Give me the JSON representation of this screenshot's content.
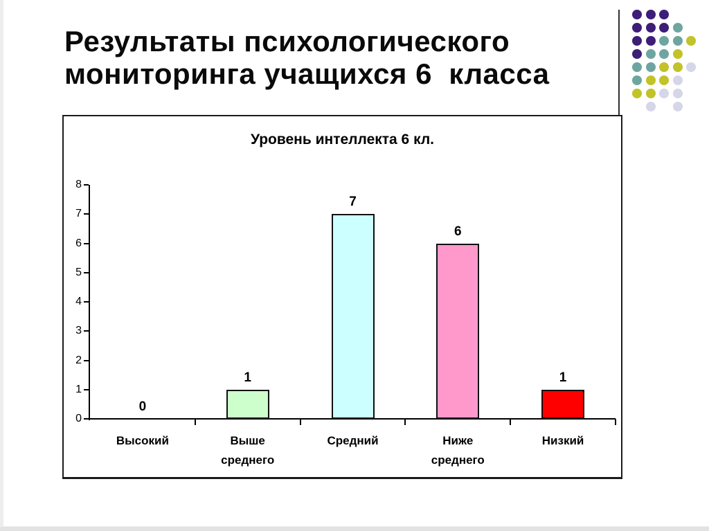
{
  "slide": {
    "title_lines": [
      "Результаты психологического",
      "мониторинга учащихся 6  класса"
    ]
  },
  "decoration": {
    "palette": {
      "p": "#3d1e78",
      "t": "#6fa5a0",
      "y": "#c2c229",
      "l": "#d6d6e9"
    },
    "rows": [
      [
        "p",
        "p",
        "p",
        "",
        ""
      ],
      [
        "p",
        "p",
        "p",
        "t",
        ""
      ],
      [
        "p",
        "p",
        "t",
        "t",
        "y"
      ],
      [
        "p",
        "t",
        "t",
        "y",
        ""
      ],
      [
        "t",
        "t",
        "y",
        "y",
        "l"
      ],
      [
        "t",
        "y",
        "y",
        "l",
        ""
      ],
      [
        "y",
        "y",
        "l",
        "l",
        ""
      ],
      [
        "",
        "l",
        "",
        "l",
        ""
      ]
    ]
  },
  "chart_data": {
    "type": "bar",
    "title": "Уровень интеллекта 6 кл.",
    "categories": [
      "Высокий",
      "Выше среднего",
      "Средний",
      "Ниже среднего",
      "Низкий"
    ],
    "values": [
      0,
      1,
      7,
      6,
      1
    ],
    "data_labels": [
      "0",
      "1",
      "7",
      "6",
      "1"
    ],
    "bar_colors": [
      "",
      "#ccffcc",
      "#ccffff",
      "#ff99cc",
      "#ff0000"
    ],
    "xlabel": "",
    "ylabel": "",
    "ylim": [
      0,
      8
    ],
    "yticks": [
      0,
      1,
      2,
      3,
      4,
      5,
      6,
      7,
      8
    ],
    "grid": false,
    "legend": false,
    "axis_color": "#000000"
  }
}
